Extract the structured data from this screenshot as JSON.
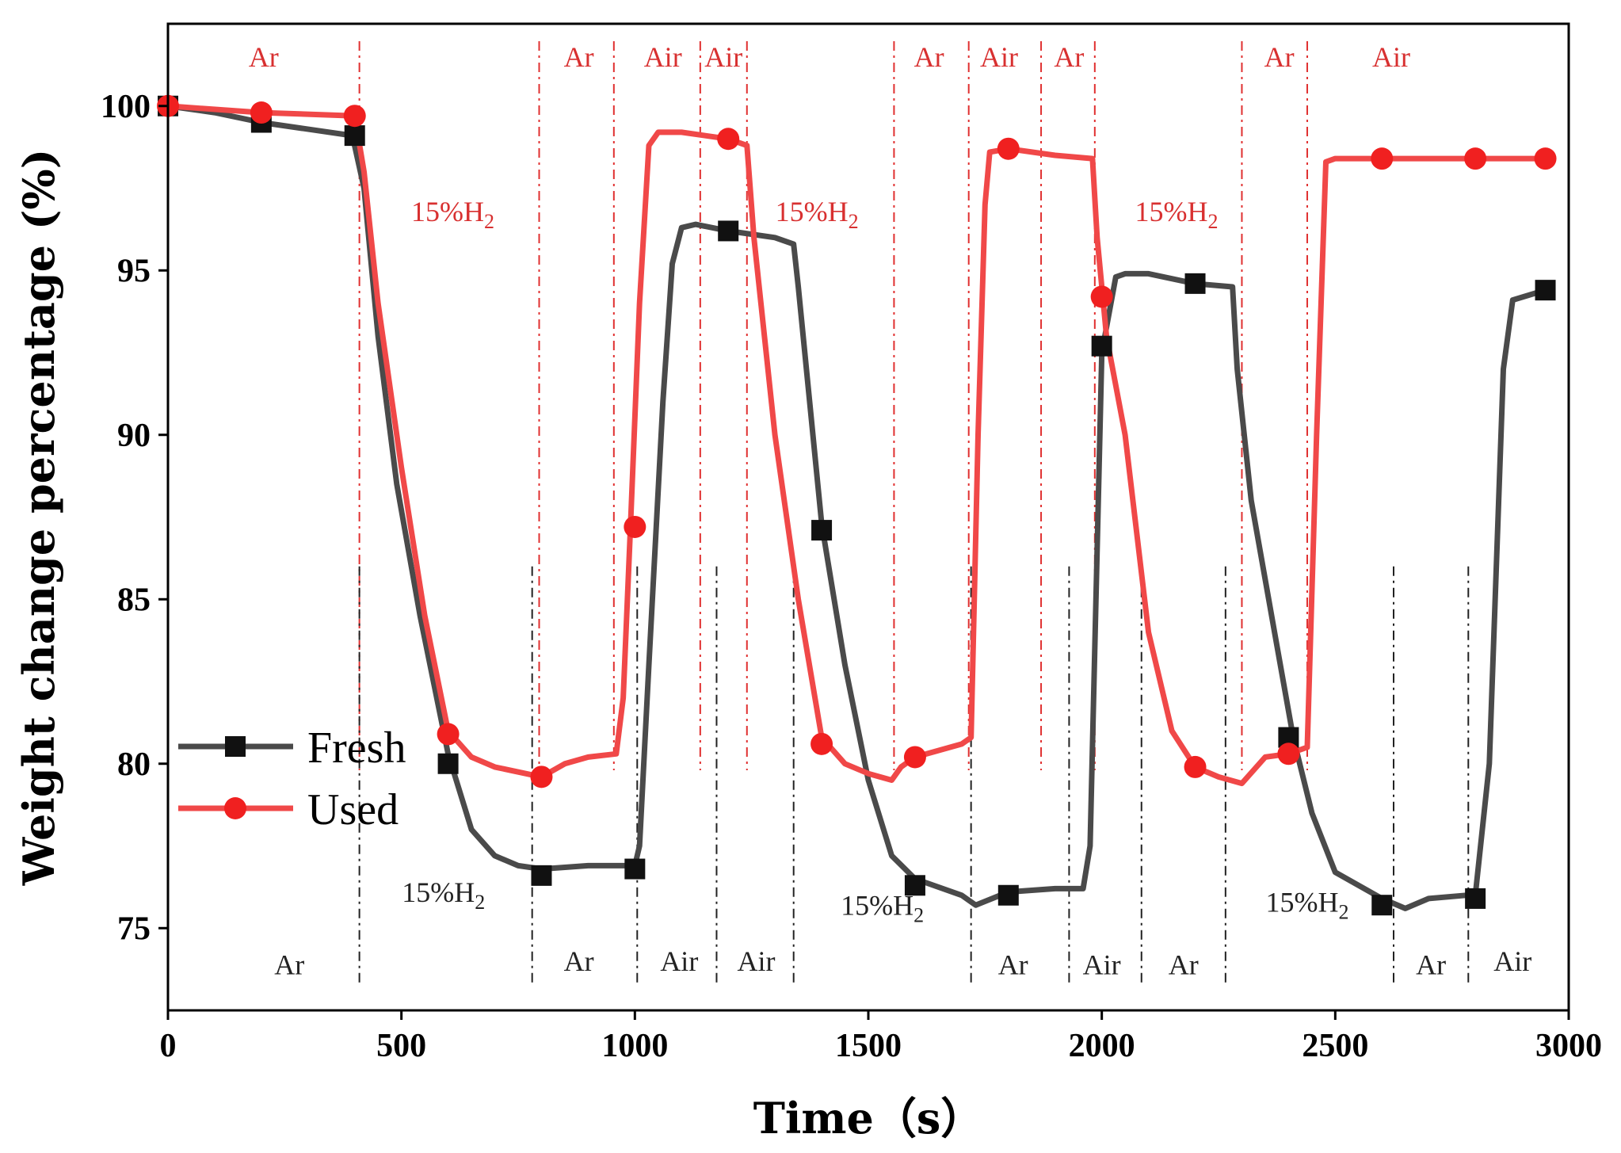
{
  "chart_data": {
    "type": "line",
    "xlabel": "Time（s）",
    "ylabel": "Weight change percentage (%)",
    "xlim": [
      0,
      3000
    ],
    "ylim": [
      72.5,
      102.5
    ],
    "x_ticks": [
      0,
      500,
      1000,
      1500,
      2000,
      2500,
      3000
    ],
    "y_ticks": [
      75,
      80,
      85,
      90,
      95,
      100
    ],
    "grid": false,
    "legend": "center-left",
    "colors": {
      "Fresh": "#4a4a4a",
      "Used": "#f04848"
    },
    "series": [
      {
        "name": "Fresh",
        "marker": "square",
        "line": [
          [
            0,
            100
          ],
          [
            100,
            99.8
          ],
          [
            200,
            99.5
          ],
          [
            395,
            99.1
          ],
          [
            420,
            97.5
          ],
          [
            450,
            93
          ],
          [
            490,
            88.5
          ],
          [
            540,
            84.5
          ],
          [
            600,
            80.3
          ],
          [
            650,
            78
          ],
          [
            700,
            77.2
          ],
          [
            750,
            76.9
          ],
          [
            800,
            76.8
          ],
          [
            900,
            76.9
          ],
          [
            1000,
            76.9
          ],
          [
            1010,
            77.5
          ],
          [
            1030,
            83
          ],
          [
            1060,
            91
          ],
          [
            1080,
            95.2
          ],
          [
            1100,
            96.3
          ],
          [
            1130,
            96.4
          ],
          [
            1200,
            96.2
          ],
          [
            1300,
            96
          ],
          [
            1340,
            95.8
          ],
          [
            1350,
            94.5
          ],
          [
            1400,
            87.3
          ],
          [
            1450,
            83
          ],
          [
            1500,
            79.5
          ],
          [
            1550,
            77.2
          ],
          [
            1600,
            76.5
          ],
          [
            1700,
            76
          ],
          [
            1730,
            75.7
          ],
          [
            1800,
            76.1
          ],
          [
            1900,
            76.2
          ],
          [
            1960,
            76.2
          ],
          [
            1975,
            77.5
          ],
          [
            2000,
            92.5
          ],
          [
            2030,
            94.8
          ],
          [
            2050,
            94.9
          ],
          [
            2100,
            94.9
          ],
          [
            2200,
            94.6
          ],
          [
            2280,
            94.5
          ],
          [
            2290,
            92
          ],
          [
            2320,
            88
          ],
          [
            2370,
            84
          ],
          [
            2410,
            80.8
          ],
          [
            2450,
            78.5
          ],
          [
            2500,
            76.7
          ],
          [
            2600,
            75.9
          ],
          [
            2650,
            75.6
          ],
          [
            2700,
            75.9
          ],
          [
            2780,
            76
          ],
          [
            2800,
            76
          ],
          [
            2830,
            80
          ],
          [
            2860,
            92
          ],
          [
            2880,
            94.1
          ],
          [
            2950,
            94.4
          ]
        ],
        "marker_points": [
          [
            0,
            100
          ],
          [
            200,
            99.5
          ],
          [
            400,
            99.1
          ],
          [
            600,
            80
          ],
          [
            800,
            76.6
          ],
          [
            1000,
            76.8
          ],
          [
            1200,
            96.2
          ],
          [
            1400,
            87.1
          ],
          [
            1600,
            76.3
          ],
          [
            1800,
            76
          ],
          [
            2000,
            92.7
          ],
          [
            2200,
            94.6
          ],
          [
            2400,
            80.8
          ],
          [
            2600,
            75.7
          ],
          [
            2800,
            75.9
          ],
          [
            2950,
            94.4
          ]
        ]
      },
      {
        "name": "Used",
        "marker": "circle",
        "line": [
          [
            0,
            100
          ],
          [
            200,
            99.8
          ],
          [
            400,
            99.7
          ],
          [
            420,
            98
          ],
          [
            450,
            94
          ],
          [
            500,
            89
          ],
          [
            550,
            84.5
          ],
          [
            600,
            81
          ],
          [
            650,
            80.2
          ],
          [
            700,
            79.9
          ],
          [
            800,
            79.6
          ],
          [
            850,
            80
          ],
          [
            900,
            80.2
          ],
          [
            960,
            80.3
          ],
          [
            975,
            82
          ],
          [
            990,
            87
          ],
          [
            1010,
            94
          ],
          [
            1030,
            98.8
          ],
          [
            1050,
            99.2
          ],
          [
            1100,
            99.2
          ],
          [
            1200,
            99
          ],
          [
            1240,
            98.8
          ],
          [
            1255,
            96
          ],
          [
            1300,
            90
          ],
          [
            1350,
            85
          ],
          [
            1400,
            80.8
          ],
          [
            1450,
            80
          ],
          [
            1500,
            79.7
          ],
          [
            1550,
            79.5
          ],
          [
            1570,
            79.9
          ],
          [
            1600,
            80.2
          ],
          [
            1700,
            80.6
          ],
          [
            1720,
            80.8
          ],
          [
            1735,
            90
          ],
          [
            1750,
            97
          ],
          [
            1760,
            98.6
          ],
          [
            1800,
            98.7
          ],
          [
            1900,
            98.5
          ],
          [
            1980,
            98.4
          ],
          [
            1990,
            96
          ],
          [
            2010,
            93
          ],
          [
            2050,
            90
          ],
          [
            2100,
            84
          ],
          [
            2150,
            81
          ],
          [
            2200,
            79.9
          ],
          [
            2250,
            79.6
          ],
          [
            2300,
            79.4
          ],
          [
            2350,
            80.2
          ],
          [
            2400,
            80.3
          ],
          [
            2440,
            80.5
          ],
          [
            2460,
            90
          ],
          [
            2480,
            98.3
          ],
          [
            2500,
            98.4
          ],
          [
            2600,
            98.4
          ],
          [
            2800,
            98.4
          ],
          [
            2950,
            98.4
          ]
        ],
        "marker_points": [
          [
            0,
            100
          ],
          [
            200,
            99.8
          ],
          [
            400,
            99.7
          ],
          [
            600,
            80.9
          ],
          [
            800,
            79.6
          ],
          [
            1000,
            87.2
          ],
          [
            1200,
            99
          ],
          [
            1400,
            80.6
          ],
          [
            1600,
            80.2
          ],
          [
            1800,
            98.7
          ],
          [
            2000,
            94.2
          ],
          [
            2200,
            79.9
          ],
          [
            2400,
            80.3
          ],
          [
            2600,
            98.4
          ],
          [
            2800,
            98.4
          ],
          [
            2950,
            98.4
          ]
        ]
      }
    ],
    "phase_boundaries_used": [
      410,
      795,
      955,
      1140,
      1240,
      1555,
      1715,
      1870,
      1985,
      2300,
      2440
    ],
    "phase_boundaries_fresh": [
      410,
      780,
      1005,
      1175,
      1340,
      1720,
      1930,
      2085,
      2265,
      2625,
      2785
    ],
    "annotations": [
      {
        "text": "Ar",
        "x": 205,
        "y": 101.2,
        "color": "red",
        "sub": ""
      },
      {
        "text": "15%H",
        "sub": "2",
        "x": 610,
        "y": 96.5,
        "color": "red"
      },
      {
        "text": "Ar",
        "x": 880,
        "y": 101.2,
        "color": "red",
        "sub": ""
      },
      {
        "text": "Air",
        "x": 1060,
        "y": 101.2,
        "color": "red",
        "sub": ""
      },
      {
        "text": "Air",
        "x": 1190,
        "y": 101.2,
        "color": "red",
        "sub": ""
      },
      {
        "text": "15%H",
        "sub": "2",
        "x": 1390,
        "y": 96.5,
        "color": "red"
      },
      {
        "text": "Ar",
        "x": 1630,
        "y": 101.2,
        "color": "red",
        "sub": ""
      },
      {
        "text": "Air",
        "x": 1780,
        "y": 101.2,
        "color": "red",
        "sub": ""
      },
      {
        "text": "Ar",
        "x": 1930,
        "y": 101.2,
        "color": "red",
        "sub": ""
      },
      {
        "text": "15%H",
        "sub": "2",
        "x": 2160,
        "y": 96.5,
        "color": "red"
      },
      {
        "text": "Ar",
        "x": 2380,
        "y": 101.2,
        "color": "red",
        "sub": ""
      },
      {
        "text": "Air",
        "x": 2620,
        "y": 101.2,
        "color": "red",
        "sub": ""
      },
      {
        "text": "Ar",
        "x": 260,
        "y": 73.6,
        "color": "black",
        "sub": ""
      },
      {
        "text": "15%H",
        "sub": "2",
        "x": 590,
        "y": 75.8,
        "color": "black"
      },
      {
        "text": "Ar",
        "x": 880,
        "y": 73.7,
        "color": "black",
        "sub": ""
      },
      {
        "text": "Air",
        "x": 1095,
        "y": 73.7,
        "color": "black",
        "sub": ""
      },
      {
        "text": "Air",
        "x": 1260,
        "y": 73.7,
        "color": "black",
        "sub": ""
      },
      {
        "text": "15%H",
        "sub": "2",
        "x": 1530,
        "y": 75.4,
        "color": "black"
      },
      {
        "text": "Ar",
        "x": 1810,
        "y": 73.6,
        "color": "black",
        "sub": ""
      },
      {
        "text": "Air",
        "x": 2000,
        "y": 73.6,
        "color": "black",
        "sub": ""
      },
      {
        "text": "Ar",
        "x": 2175,
        "y": 73.6,
        "color": "black",
        "sub": ""
      },
      {
        "text": "15%H",
        "sub": "2",
        "x": 2440,
        "y": 75.5,
        "color": "black"
      },
      {
        "text": "Ar",
        "x": 2705,
        "y": 73.6,
        "color": "black",
        "sub": ""
      },
      {
        "text": "Air",
        "x": 2880,
        "y": 73.7,
        "color": "black",
        "sub": ""
      }
    ]
  }
}
